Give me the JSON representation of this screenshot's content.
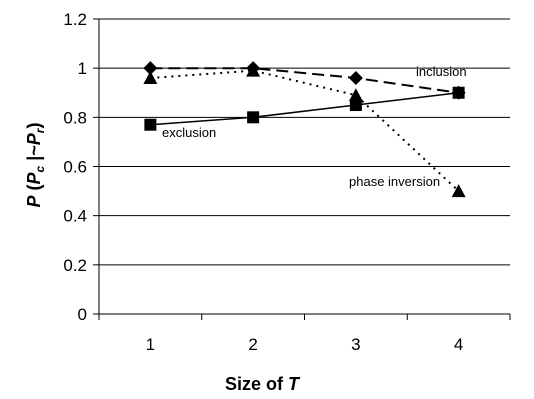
{
  "chart_data": {
    "type": "line",
    "x": [
      1,
      2,
      3,
      4
    ],
    "xlabel": {
      "prefix": "Size of ",
      "var": "T"
    },
    "ylabel": {
      "p": "P",
      "open": " (",
      "p1": "P",
      "s1": "c",
      "mid": " |~",
      "p2": "P",
      "s2": "r",
      "close": ")"
    },
    "ylim": [
      0,
      1.2
    ],
    "yticks": [
      "0",
      "0.2",
      "0.4",
      "0.6",
      "0.8",
      "1",
      "1.2"
    ],
    "xticks": [
      "1",
      "2",
      "3",
      "4"
    ],
    "grid": true,
    "series": [
      {
        "name": "inclusion",
        "values": [
          1.0,
          1.0,
          0.96,
          0.9
        ],
        "style": "dashed",
        "marker": "diamond",
        "color": "#000000"
      },
      {
        "name": "exclusion",
        "values": [
          0.77,
          0.8,
          0.85,
          0.9
        ],
        "style": "solid",
        "marker": "square",
        "color": "#000000"
      },
      {
        "name": "phase inversion",
        "values": [
          0.96,
          0.99,
          0.89,
          0.5
        ],
        "style": "dotted",
        "marker": "triangle",
        "color": "#000000"
      }
    ]
  }
}
